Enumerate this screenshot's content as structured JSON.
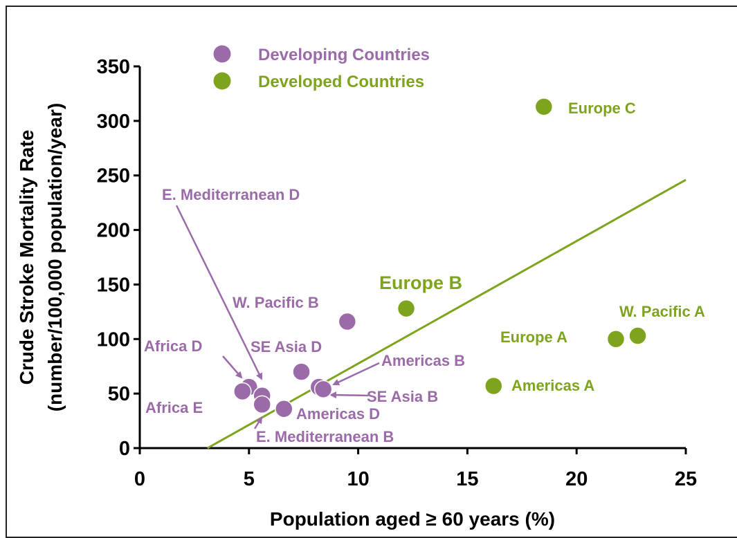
{
  "chart_data": {
    "type": "scatter",
    "xlabel": "Population aged  ≥ 60 years (%)",
    "ylabel_lines": [
      "Crude Stroke Mortality Rate",
      "(number/100,000 population/year)"
    ],
    "xlim": [
      0,
      25
    ],
    "ylim": [
      0,
      350
    ],
    "xticks": [
      "0",
      "5",
      "10",
      "15",
      "20",
      "25"
    ],
    "yticks": [
      "0",
      "50",
      "100",
      "150",
      "200",
      "250",
      "300",
      "350"
    ],
    "grid": false,
    "legend_position": "top-left",
    "colors": {
      "developing": "#9b6aa8",
      "developed": "#7ea41e"
    },
    "series": [
      {
        "name": "Developing Countries",
        "points": [
          {
            "label": "Africa D",
            "x": 5.0,
            "y": 56
          },
          {
            "label": "Africa E",
            "x": 4.7,
            "y": 52
          },
          {
            "label": "E. Mediterranean D",
            "x": 5.6,
            "y": 48
          },
          {
            "label": "E. Mediterranean B",
            "x": 5.6,
            "y": 40
          },
          {
            "label": "Americas D",
            "x": 6.6,
            "y": 36
          },
          {
            "label": "SE Asia D",
            "x": 7.4,
            "y": 70
          },
          {
            "label": "Americas B",
            "x": 8.2,
            "y": 56
          },
          {
            "label": "SE Asia B",
            "x": 8.4,
            "y": 54
          },
          {
            "label": "W. Pacific B",
            "x": 9.5,
            "y": 116
          }
        ]
      },
      {
        "name": "Developed Countries",
        "points": [
          {
            "label": "Europe B",
            "x": 12.2,
            "y": 128
          },
          {
            "label": "Americas A",
            "x": 16.2,
            "y": 57
          },
          {
            "label": "Europe C",
            "x": 18.5,
            "y": 313
          },
          {
            "label": "Europe A",
            "x": 21.8,
            "y": 100
          },
          {
            "label": "W. Pacific A",
            "x": 22.8,
            "y": 103
          }
        ]
      }
    ],
    "trendline": {
      "x": [
        3.1,
        25
      ],
      "y": [
        0,
        246
      ]
    }
  }
}
